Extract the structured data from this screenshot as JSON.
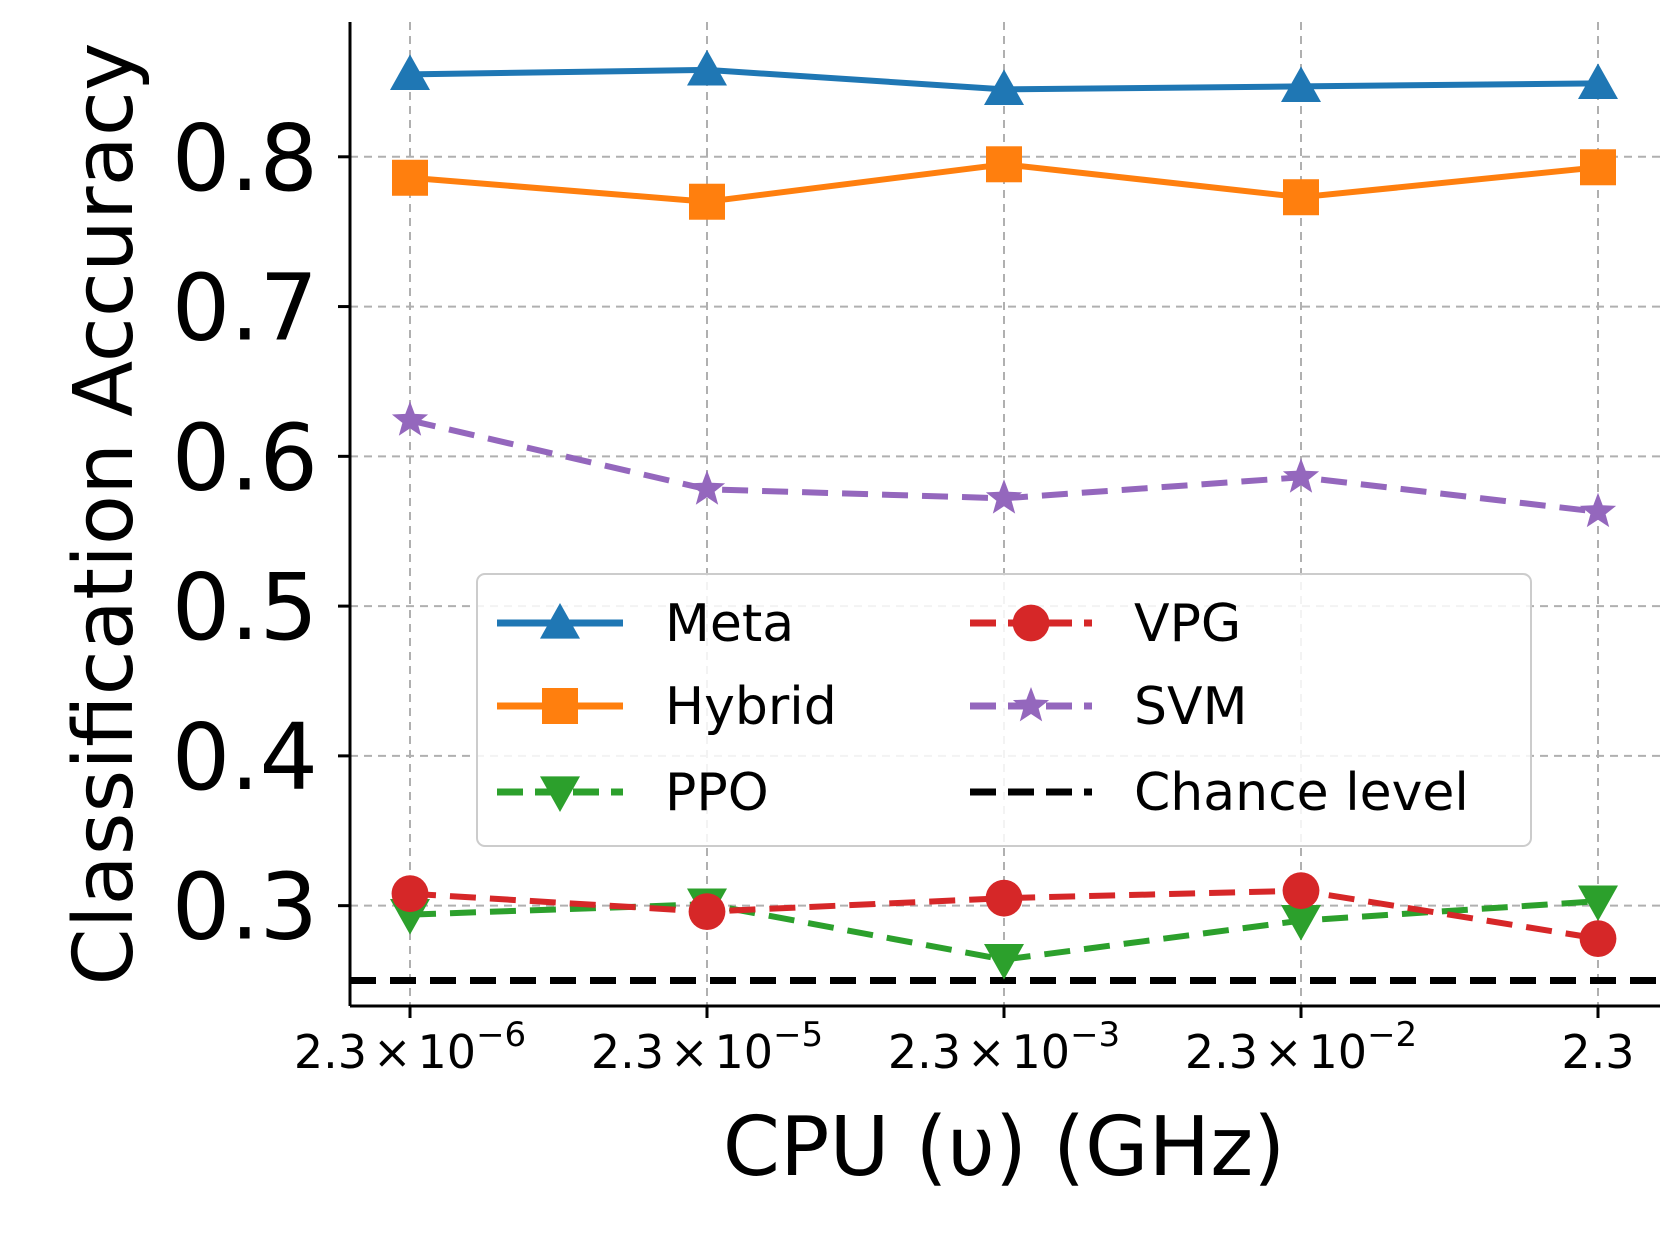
{
  "chart_data": {
    "type": "line",
    "title": "",
    "xlabel": "CPU (υ) (GHz)",
    "ylabel": "Classification Accuracy",
    "categories": [
      "2.3×10⁻⁶",
      "2.3×10⁻⁵",
      "2.3×10⁻³",
      "2.3×10⁻²",
      "2.3"
    ],
    "x_ticks": [
      {
        "base": "2.3",
        "times": "×",
        "ten": "10",
        "exp": "−6"
      },
      {
        "base": "2.3",
        "times": "×",
        "ten": "10",
        "exp": "−5"
      },
      {
        "base": "2.3",
        "times": "×",
        "ten": "10",
        "exp": "−3"
      },
      {
        "base": "2.3",
        "times": "×",
        "ten": "10",
        "exp": "−2"
      },
      {
        "base": "2.3",
        "times": "",
        "ten": "",
        "exp": ""
      }
    ],
    "y_ticks": [
      "0.3",
      "0.4",
      "0.5",
      "0.6",
      "0.7",
      "0.8"
    ],
    "y_tick_values": [
      0.3,
      0.4,
      0.5,
      0.6,
      0.7,
      0.8
    ],
    "ylim": [
      0.233,
      0.89
    ],
    "grid": true,
    "legend_position": "center",
    "series": [
      {
        "name": "Meta",
        "color": "#1f77b4",
        "style": "solid",
        "marker": "triangle-up",
        "values": [
          0.855,
          0.858,
          0.845,
          0.847,
          0.849
        ]
      },
      {
        "name": "Hybrid",
        "color": "#ff7f0e",
        "style": "solid",
        "marker": "square",
        "values": [
          0.786,
          0.77,
          0.795,
          0.773,
          0.793
        ]
      },
      {
        "name": "PPO",
        "color": "#2ca02c",
        "style": "dashed",
        "marker": "triangle-down",
        "values": [
          0.294,
          0.301,
          0.264,
          0.29,
          0.303
        ]
      },
      {
        "name": "VPG",
        "color": "#d62728",
        "style": "dashed",
        "marker": "circle",
        "values": [
          0.308,
          0.296,
          0.305,
          0.31,
          0.278
        ]
      },
      {
        "name": "SVM",
        "color": "#9467bd",
        "style": "dashed",
        "marker": "star",
        "values": [
          0.624,
          0.578,
          0.572,
          0.586,
          0.563
        ]
      },
      {
        "name": "Chance level",
        "color": "#000000",
        "style": "dashed",
        "marker": "none",
        "values": [
          0.25,
          0.25,
          0.25,
          0.25,
          0.25
        ]
      }
    ]
  }
}
